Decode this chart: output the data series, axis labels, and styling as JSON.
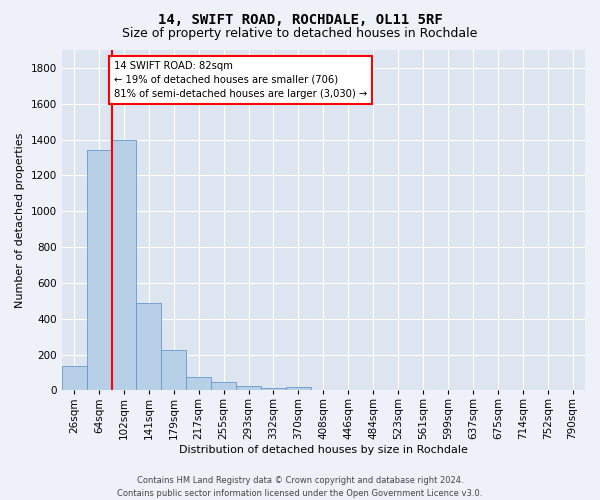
{
  "title": "14, SWIFT ROAD, ROCHDALE, OL11 5RF",
  "subtitle": "Size of property relative to detached houses in Rochdale",
  "xlabel": "Distribution of detached houses by size in Rochdale",
  "ylabel": "Number of detached properties",
  "bar_values": [
    135,
    1340,
    1400,
    490,
    225,
    75,
    45,
    25,
    15,
    20,
    0,
    0,
    0,
    0,
    0,
    0,
    0,
    0,
    0,
    0,
    0
  ],
  "bar_labels": [
    "26sqm",
    "64sqm",
    "102sqm",
    "141sqm",
    "179sqm",
    "217sqm",
    "255sqm",
    "293sqm",
    "332sqm",
    "370sqm",
    "408sqm",
    "446sqm",
    "484sqm",
    "523sqm",
    "561sqm",
    "599sqm",
    "637sqm",
    "675sqm",
    "714sqm",
    "752sqm",
    "790sqm"
  ],
  "bar_color": "#b8cfe8",
  "bar_edge_color": "#6699cc",
  "highlight_line_color": "red",
  "annotation_text": "14 SWIFT ROAD: 82sqm\n← 19% of detached houses are smaller (706)\n81% of semi-detached houses are larger (3,030) →",
  "annotation_box_color": "white",
  "annotation_box_edge_color": "red",
  "ylim": [
    0,
    1900
  ],
  "yticks": [
    0,
    200,
    400,
    600,
    800,
    1000,
    1200,
    1400,
    1600,
    1800
  ],
  "footer_line1": "Contains HM Land Registry data © Crown copyright and database right 2024.",
  "footer_line2": "Contains public sector information licensed under the Open Government Licence v3.0.",
  "background_color": "#eef2f8",
  "plot_background_color": "#dde6f0",
  "title_fontsize": 10,
  "subtitle_fontsize": 9,
  "axis_label_fontsize": 8,
  "tick_fontsize": 7.5,
  "footer_fontsize": 6,
  "red_line_x": 1.5
}
